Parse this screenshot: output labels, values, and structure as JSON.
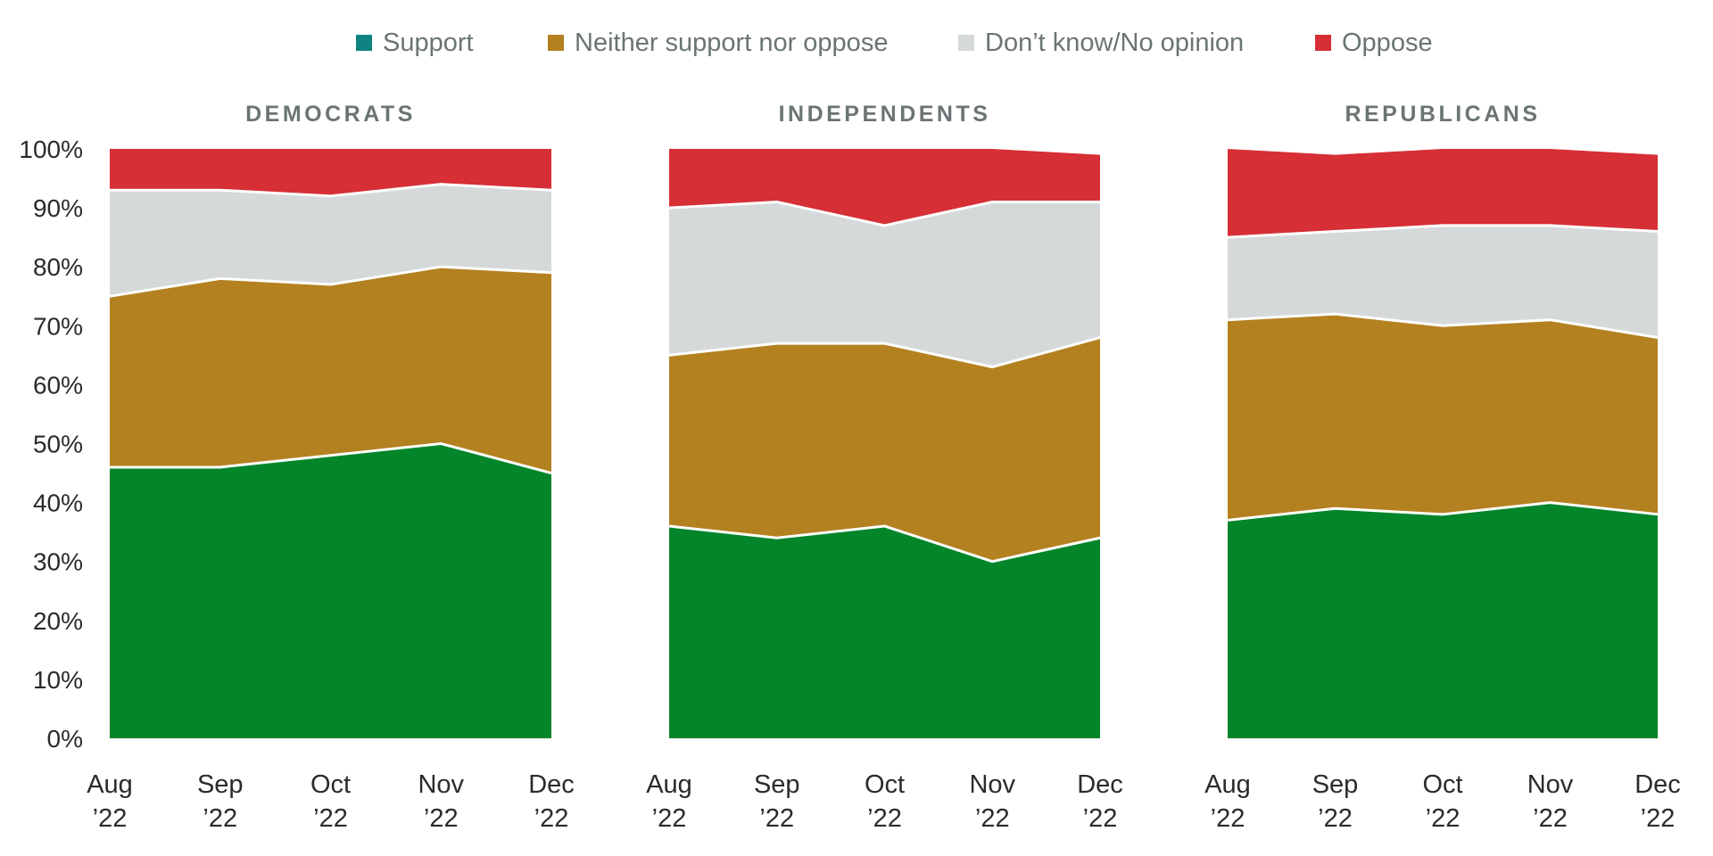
{
  "chart_data": {
    "type": "area",
    "stacked": true,
    "title": "",
    "xlabel": "",
    "ylabel": "",
    "ylim": [
      0,
      100
    ],
    "y_ticks": [
      "0%",
      "10%",
      "20%",
      "30%",
      "40%",
      "50%",
      "60%",
      "70%",
      "80%",
      "90%",
      "100%"
    ],
    "grid": false,
    "legend_position": "top-center",
    "categories": [
      "Aug|’22",
      "Sep|’22",
      "Oct|’22",
      "Nov|’22",
      "Dec|’22"
    ],
    "series_meta": [
      {
        "key": "support",
        "name": "Support",
        "legend_color": "#0f8382",
        "fill_color": "#03862a"
      },
      {
        "key": "neither",
        "name": "Neither support nor oppose",
        "legend_color": "#b3811f",
        "fill_color": "#b3811f"
      },
      {
        "key": "dontknow",
        "name": "Don’t know/No opinion",
        "legend_color": "#d6d9da",
        "fill_color": "#d6d9da"
      },
      {
        "key": "oppose",
        "name": "Oppose",
        "legend_color": "#d62f35",
        "fill_color": "#d62f35"
      }
    ],
    "panels": [
      {
        "title": "DEMOCRATS",
        "series": [
          {
            "name": "Support",
            "values": [
              46,
              46,
              48,
              50,
              45
            ]
          },
          {
            "name": "Neither support nor oppose",
            "values": [
              29,
              32,
              29,
              30,
              34
            ]
          },
          {
            "name": "Don’t know/No opinion",
            "values": [
              18,
              15,
              15,
              14,
              14
            ]
          },
          {
            "name": "Oppose",
            "values": [
              7,
              7,
              8,
              6,
              7
            ]
          }
        ]
      },
      {
        "title": "INDEPENDENTS",
        "series": [
          {
            "name": "Support",
            "values": [
              36,
              34,
              36,
              30,
              34
            ]
          },
          {
            "name": "Neither support nor oppose",
            "values": [
              29,
              33,
              31,
              33,
              34
            ]
          },
          {
            "name": "Don’t know/No opinion",
            "values": [
              25,
              24,
              20,
              28,
              23
            ]
          },
          {
            "name": "Oppose",
            "values": [
              10,
              9,
              13,
              9,
              8
            ]
          }
        ]
      },
      {
        "title": "REPUBLICANS",
        "series": [
          {
            "name": "Support",
            "values": [
              37,
              39,
              38,
              40,
              38
            ]
          },
          {
            "name": "Neither support nor oppose",
            "values": [
              34,
              33,
              32,
              31,
              30
            ]
          },
          {
            "name": "Don’t know/No opinion",
            "values": [
              14,
              14,
              17,
              16,
              18
            ]
          },
          {
            "name": "Oppose",
            "values": [
              15,
              13,
              13,
              13,
              13
            ]
          }
        ]
      }
    ]
  },
  "legend": {
    "items": [
      {
        "label": "Support",
        "color": "#0f8382"
      },
      {
        "label": "Neither support nor oppose",
        "color": "#b3811f"
      },
      {
        "label": "Don’t know/No opinion",
        "color": "#d6d9da"
      },
      {
        "label": "Oppose",
        "color": "#d62f35"
      }
    ]
  }
}
